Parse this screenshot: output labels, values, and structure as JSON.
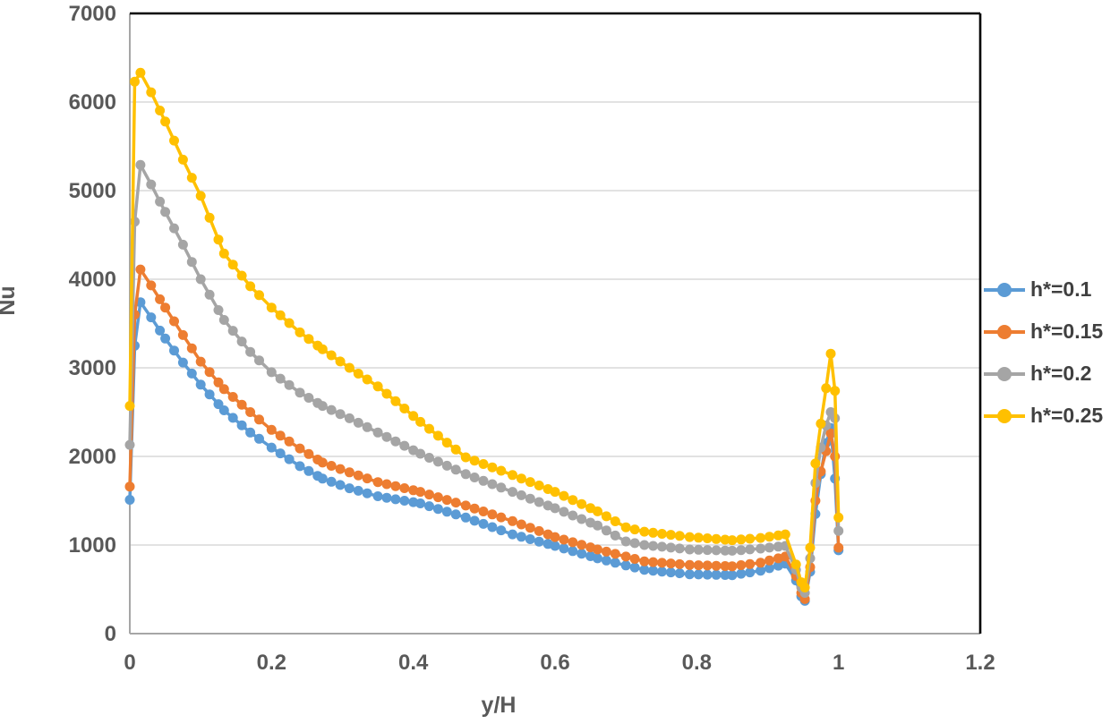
{
  "chart_data": {
    "type": "line",
    "title": "",
    "xlabel": "y/H",
    "ylabel": "Nu",
    "xlim": [
      0,
      1.2
    ],
    "ylim": [
      0,
      7000
    ],
    "x_ticks": [
      "0",
      "0.2",
      "0.4",
      "0.6",
      "0.8",
      "1",
      "1.2"
    ],
    "y_ticks": [
      "0",
      "1000",
      "2000",
      "3000",
      "4000",
      "5000",
      "6000",
      "7000"
    ],
    "grid": "horizontal",
    "gridline_color": "#d9d9d9",
    "axis_line_color": "#a6a6a6",
    "plot_border_top_right_color": "#000000",
    "tick_label_color": "#595959",
    "legend_position": "right",
    "legend_text_color": "#404040",
    "marker": "circle",
    "marker_interval": 0.0125,
    "series": [
      {
        "name": "h*=0.1",
        "color": "#5B9BD5",
        "points": [
          [
            0,
            1510
          ],
          [
            0.007,
            3250
          ],
          [
            0.015,
            3740
          ],
          [
            0.03,
            3570
          ],
          [
            0.05,
            3330
          ],
          [
            0.075,
            3060
          ],
          [
            0.1,
            2810
          ],
          [
            0.133,
            2520
          ],
          [
            0.17,
            2270
          ],
          [
            0.2,
            2100
          ],
          [
            0.24,
            1890
          ],
          [
            0.272,
            1750
          ],
          [
            0.31,
            1640
          ],
          [
            0.35,
            1550
          ],
          [
            0.41,
            1470
          ],
          [
            0.474,
            1310
          ],
          [
            0.54,
            1120
          ],
          [
            0.6,
            990
          ],
          [
            0.66,
            850
          ],
          [
            0.7,
            770
          ],
          [
            0.726,
            720
          ],
          [
            0.79,
            670
          ],
          [
            0.85,
            660
          ],
          [
            0.89,
            710
          ],
          [
            0.925,
            790
          ],
          [
            0.94,
            600
          ],
          [
            0.9475,
            420
          ],
          [
            0.9525,
            370
          ],
          [
            0.96,
            700
          ],
          [
            0.9675,
            1350
          ],
          [
            0.975,
            1800
          ],
          [
            0.9825,
            2150
          ],
          [
            0.989,
            2320
          ],
          [
            0.995,
            1750
          ],
          [
            1,
            940
          ]
        ]
      },
      {
        "name": "h*=0.15",
        "color": "#ED7D31",
        "points": [
          [
            0,
            1660
          ],
          [
            0.007,
            3600
          ],
          [
            0.015,
            4110
          ],
          [
            0.03,
            3930
          ],
          [
            0.05,
            3680
          ],
          [
            0.075,
            3370
          ],
          [
            0.1,
            3070
          ],
          [
            0.133,
            2760
          ],
          [
            0.17,
            2500
          ],
          [
            0.2,
            2300
          ],
          [
            0.24,
            2090
          ],
          [
            0.272,
            1930
          ],
          [
            0.31,
            1820
          ],
          [
            0.35,
            1710
          ],
          [
            0.41,
            1600
          ],
          [
            0.474,
            1445
          ],
          [
            0.54,
            1270
          ],
          [
            0.6,
            1090
          ],
          [
            0.66,
            950
          ],
          [
            0.7,
            870
          ],
          [
            0.726,
            815
          ],
          [
            0.79,
            775
          ],
          [
            0.85,
            760
          ],
          [
            0.89,
            800
          ],
          [
            0.925,
            870
          ],
          [
            0.94,
            650
          ],
          [
            0.9475,
            460
          ],
          [
            0.9525,
            390
          ],
          [
            0.96,
            750
          ],
          [
            0.9675,
            1500
          ],
          [
            0.975,
            1830
          ],
          [
            0.9825,
            2060
          ],
          [
            0.989,
            2260
          ],
          [
            0.995,
            2000
          ],
          [
            1,
            970
          ]
        ]
      },
      {
        "name": "h*=0.2",
        "color": "#A5A5A5",
        "points": [
          [
            0,
            2130
          ],
          [
            0.007,
            4650
          ],
          [
            0.015,
            5290
          ],
          [
            0.03,
            5070
          ],
          [
            0.05,
            4760
          ],
          [
            0.075,
            4390
          ],
          [
            0.1,
            4000
          ],
          [
            0.133,
            3540
          ],
          [
            0.17,
            3180
          ],
          [
            0.2,
            2950
          ],
          [
            0.24,
            2720
          ],
          [
            0.272,
            2570
          ],
          [
            0.31,
            2430
          ],
          [
            0.35,
            2270
          ],
          [
            0.41,
            2030
          ],
          [
            0.474,
            1800
          ],
          [
            0.54,
            1600
          ],
          [
            0.6,
            1415
          ],
          [
            0.66,
            1220
          ],
          [
            0.7,
            1040
          ],
          [
            0.726,
            1000
          ],
          [
            0.79,
            950
          ],
          [
            0.85,
            935
          ],
          [
            0.89,
            960
          ],
          [
            0.925,
            990
          ],
          [
            0.94,
            720
          ],
          [
            0.9475,
            520
          ],
          [
            0.9525,
            460
          ],
          [
            0.96,
            850
          ],
          [
            0.9675,
            1700
          ],
          [
            0.975,
            2100
          ],
          [
            0.9825,
            2350
          ],
          [
            0.989,
            2500
          ],
          [
            0.995,
            2430
          ],
          [
            1,
            1160
          ]
        ]
      },
      {
        "name": "h*=0.25",
        "color": "#FFC000",
        "points": [
          [
            0,
            2570
          ],
          [
            0.007,
            6230
          ],
          [
            0.015,
            6330
          ],
          [
            0.03,
            6110
          ],
          [
            0.05,
            5780
          ],
          [
            0.075,
            5350
          ],
          [
            0.1,
            4940
          ],
          [
            0.133,
            4290
          ],
          [
            0.17,
            3920
          ],
          [
            0.2,
            3680
          ],
          [
            0.24,
            3400
          ],
          [
            0.272,
            3210
          ],
          [
            0.31,
            3000
          ],
          [
            0.35,
            2790
          ],
          [
            0.41,
            2390
          ],
          [
            0.474,
            1990
          ],
          [
            0.54,
            1790
          ],
          [
            0.6,
            1600
          ],
          [
            0.66,
            1380
          ],
          [
            0.7,
            1200
          ],
          [
            0.726,
            1150
          ],
          [
            0.79,
            1090
          ],
          [
            0.85,
            1055
          ],
          [
            0.89,
            1080
          ],
          [
            0.925,
            1120
          ],
          [
            0.94,
            780
          ],
          [
            0.9475,
            580
          ],
          [
            0.9525,
            520
          ],
          [
            0.96,
            970
          ],
          [
            0.9675,
            1920
          ],
          [
            0.975,
            2370
          ],
          [
            0.9825,
            2770
          ],
          [
            0.989,
            3160
          ],
          [
            0.995,
            2740
          ],
          [
            1,
            1310
          ]
        ]
      }
    ]
  }
}
